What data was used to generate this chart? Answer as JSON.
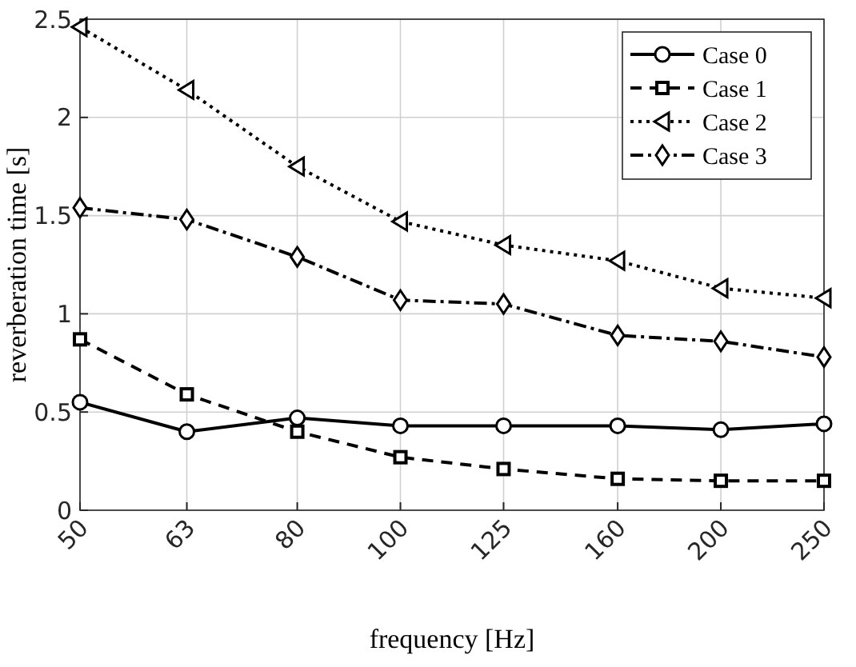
{
  "chart_data": {
    "type": "line",
    "xlabel": "frequency [Hz]",
    "ylabel": "reverberation time [s]",
    "log": "x",
    "x": [
      50,
      63,
      80,
      100,
      125,
      160,
      200,
      250
    ],
    "xlim": [
      50,
      250
    ],
    "xticks": [
      50,
      63,
      80,
      100,
      125,
      160,
      200,
      250
    ],
    "ylim": [
      0,
      2.5
    ],
    "yticks": [
      0,
      0.5,
      1,
      1.5,
      2,
      2.5
    ],
    "grid": true,
    "legend": "top right",
    "series": [
      {
        "name": "Case 0",
        "color": "#000000",
        "marker": "circle",
        "line_style": "solid",
        "values": [
          0.55,
          0.4,
          0.47,
          0.43,
          0.43,
          0.43,
          0.41,
          0.44
        ]
      },
      {
        "name": "Case 1",
        "color": "#000000",
        "marker": "square",
        "line_style": "dashed",
        "values": [
          0.87,
          0.59,
          0.4,
          0.27,
          0.21,
          0.16,
          0.15,
          0.15
        ]
      },
      {
        "name": "Case 2",
        "color": "#000000",
        "marker": "triangle",
        "line_style": "dotted",
        "values": [
          2.46,
          2.14,
          1.75,
          1.47,
          1.35,
          1.27,
          1.13,
          1.08
        ]
      },
      {
        "name": "Case 3",
        "color": "#000000",
        "marker": "diamond",
        "line_style": "dashdot",
        "values": [
          1.54,
          1.48,
          1.29,
          1.07,
          1.05,
          0.89,
          0.86,
          0.78
        ]
      }
    ]
  }
}
